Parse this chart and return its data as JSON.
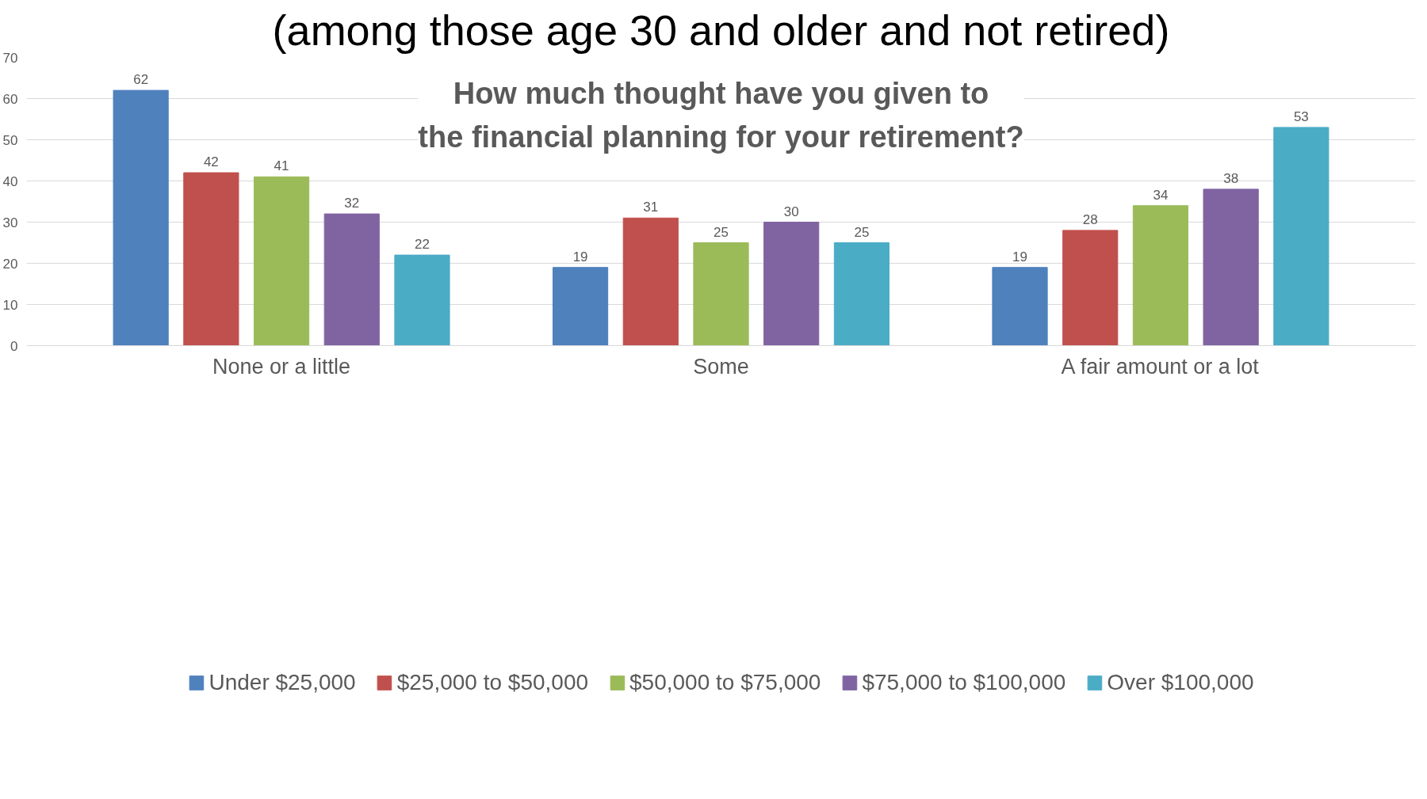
{
  "chart_data": {
    "type": "bar",
    "title": "How much thought have you given to the financial planning for your retirement?",
    "subtitle": "(among those age 30 and older and not retired)",
    "categories": [
      "None or a little",
      "Some",
      "A fair amount or a lot"
    ],
    "series": [
      {
        "name": "Under $25,000",
        "color": "#4f81bd",
        "values": [
          62,
          19,
          19
        ]
      },
      {
        "name": "$25,000 to $50,000",
        "color": "#c0504d",
        "values": [
          42,
          31,
          28
        ]
      },
      {
        "name": "$50,000 to $75,000",
        "color": "#9bbb59",
        "values": [
          41,
          25,
          34
        ]
      },
      {
        "name": "$75,000 to $100,000",
        "color": "#8064a2",
        "values": [
          32,
          30,
          38
        ]
      },
      {
        "name": "Over $100,000",
        "color": "#4bacc6",
        "values": [
          22,
          25,
          53
        ]
      }
    ],
    "ylim": [
      0,
      70
    ],
    "yticks": [
      0,
      10,
      20,
      30,
      40,
      50,
      60,
      70
    ],
    "grid": "y",
    "legend": "bottom",
    "data_labels": true
  }
}
